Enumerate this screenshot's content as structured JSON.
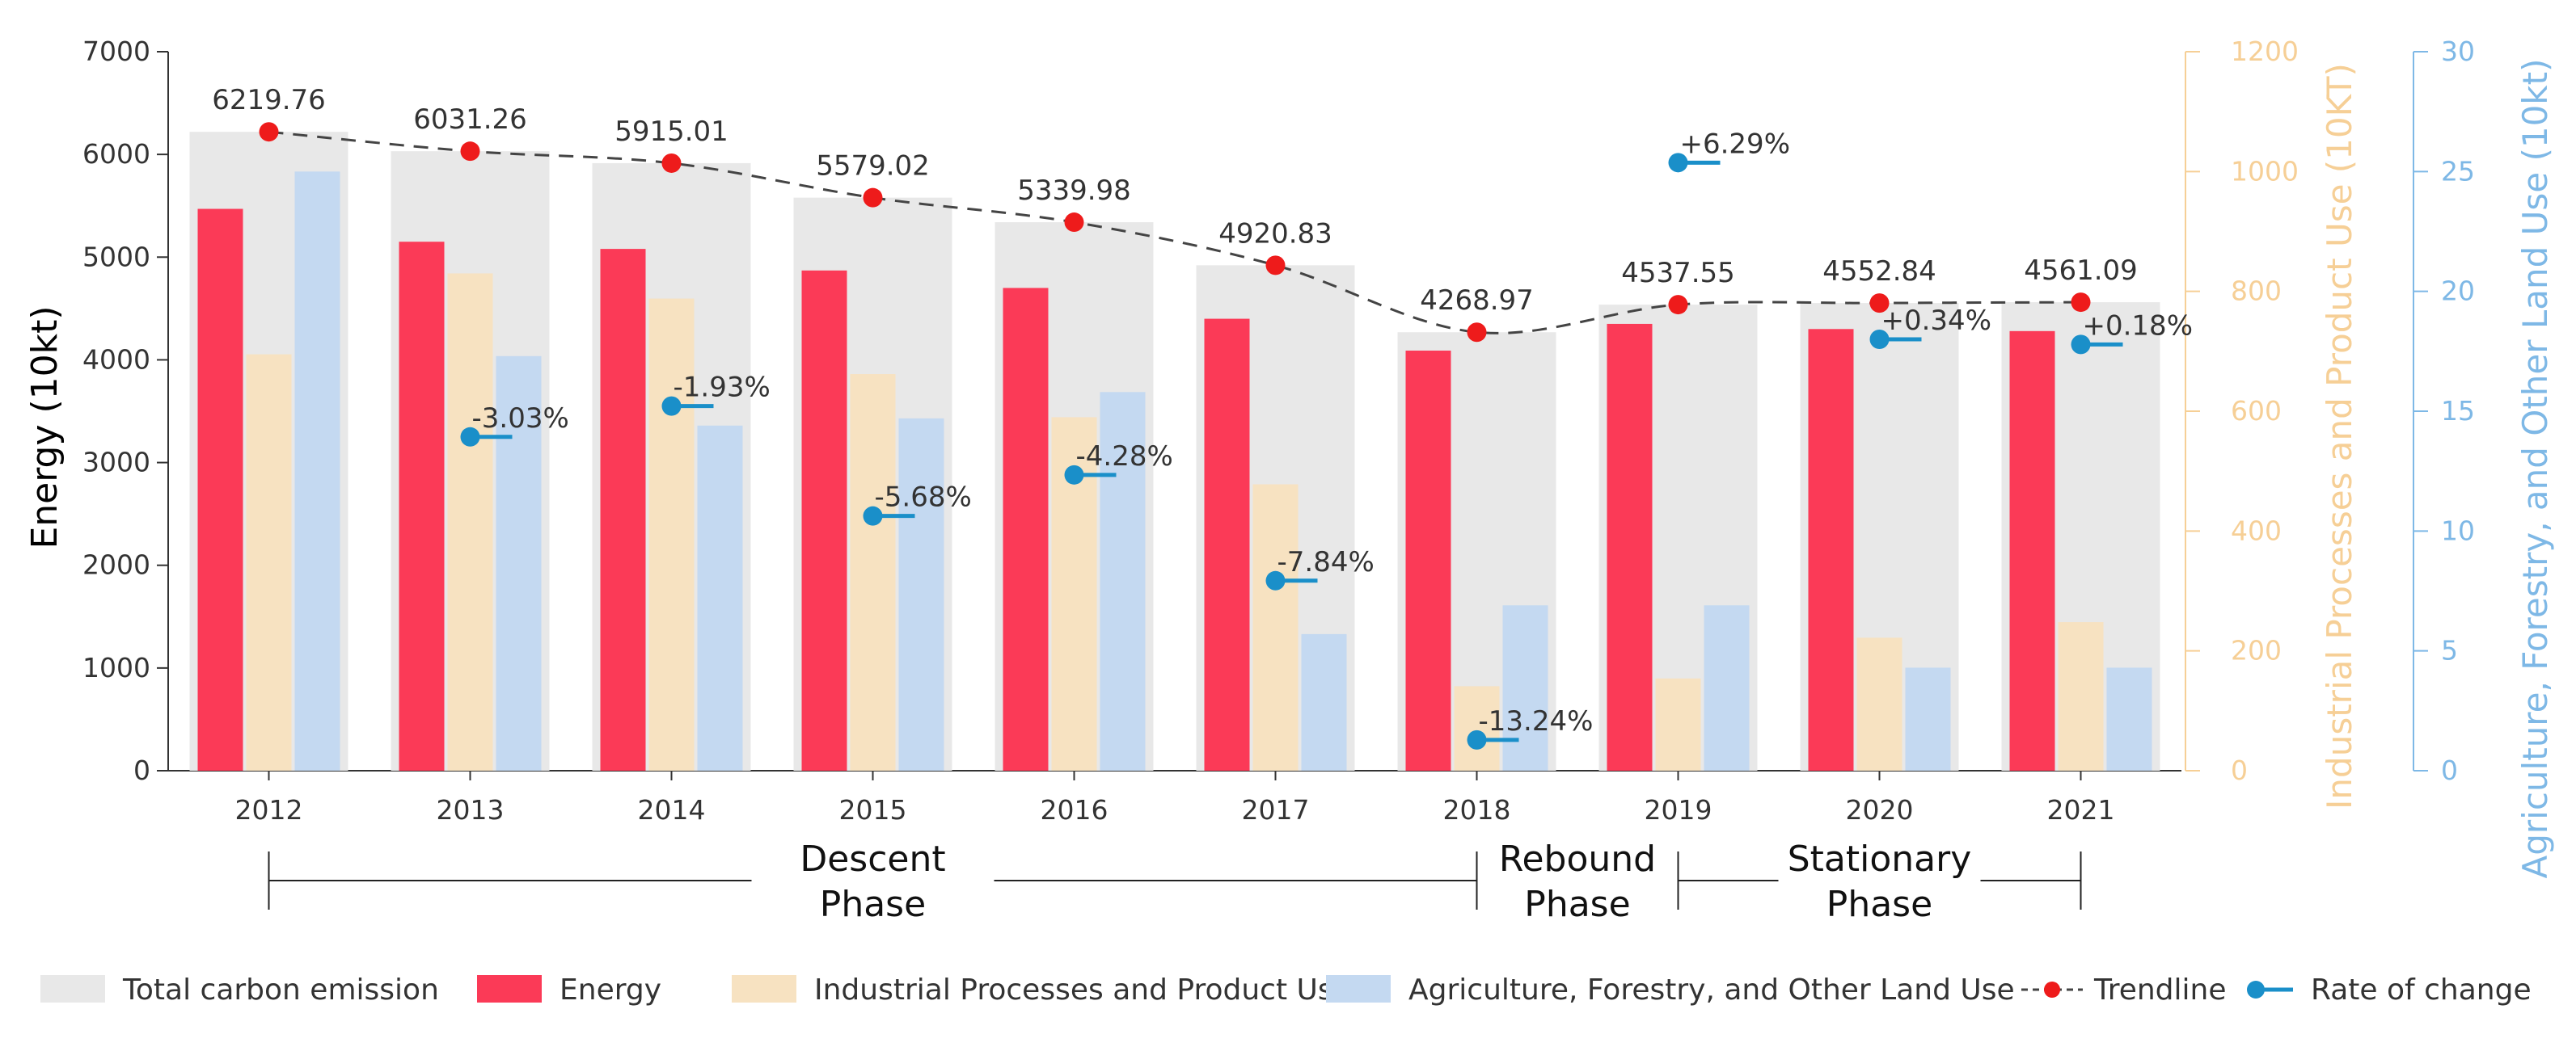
{
  "chart_data": {
    "type": "bar",
    "categories": [
      "2012",
      "2013",
      "2014",
      "2015",
      "2016",
      "2017",
      "2018",
      "2019",
      "2020",
      "2021"
    ],
    "series": [
      {
        "name": "Total carbon emission",
        "axis": "left",
        "color": "#e8e8e8",
        "values": [
          6219.76,
          6031.26,
          5915.01,
          5579.02,
          5339.98,
          4920.83,
          4268.97,
          4537.55,
          4552.84,
          4561.09
        ]
      },
      {
        "name": "Energy",
        "axis": "left",
        "color": "#fb3a57",
        "values": [
          5470,
          5150,
          5080,
          4870,
          4700,
          4400,
          4090,
          4350,
          4300,
          4280
        ]
      },
      {
        "name": "Industrial Processes and Product Use",
        "axis": "right1",
        "color": "#f7e2c1",
        "values": [
          695,
          830,
          788,
          662,
          590,
          478,
          141,
          154,
          222,
          248
        ]
      },
      {
        "name": "Agriculture, Forestry, and Other Land Use",
        "axis": "right2",
        "color": "#c4d9f1",
        "values": [
          25.0,
          17.3,
          14.4,
          14.7,
          15.8,
          5.7,
          6.9,
          6.9,
          4.3,
          4.3
        ]
      }
    ],
    "trendline": {
      "name": "Trendline",
      "color": "#ee1b1b"
    },
    "rate_of_change": {
      "name": "Rate of change",
      "color": "#1a8fc9",
      "labels": [
        "",
        "-3.03%",
        "-1.93%",
        "-5.68%",
        "-4.28%",
        "-7.84%",
        "-13.24%",
        "+6.29%",
        "+0.34%",
        "+0.18%"
      ],
      "positions": [
        null,
        3250,
        3550,
        2480,
        2880,
        1850,
        300,
        5920,
        4200,
        4150
      ]
    },
    "y_left": {
      "label": "Energy (10kt)",
      "ylim": [
        0,
        7000
      ],
      "ticks": [
        "0",
        "1000",
        "2000",
        "3000",
        "4000",
        "5000",
        "6000",
        "7000"
      ]
    },
    "y_right1": {
      "label": "Industrial Processes and Product Use (10KT)",
      "ylim": [
        0,
        1200
      ],
      "ticks": [
        "0",
        "200",
        "400",
        "600",
        "800",
        "1000",
        "1200"
      ]
    },
    "y_right2": {
      "label": "Agriculture, Forestry, and Other Land Use (10kt)",
      "ylim": [
        0,
        30
      ],
      "ticks": [
        "0",
        "5",
        "10",
        "15",
        "20",
        "25",
        "30"
      ]
    },
    "phases": [
      {
        "label_line1": "Descent",
        "label_line2": "Phase",
        "from": "2012",
        "to": "2018"
      },
      {
        "label_line1": "Rebound",
        "label_line2": "Phase",
        "from": "2018",
        "to": "2019"
      },
      {
        "label_line1": "Stationary",
        "label_line2": "Phase",
        "from": "2019",
        "to": "2021"
      }
    ],
    "legend": [
      {
        "label": "Total carbon emission",
        "kind": "box",
        "color": "#e8e8e8"
      },
      {
        "label": "Energy",
        "kind": "box",
        "color": "#fb3a57"
      },
      {
        "label": "Industrial Processes and Product Use",
        "kind": "box",
        "color": "#f7e2c1"
      },
      {
        "label": "Agriculture, Forestry, and Other Land Use",
        "kind": "box",
        "color": "#c4d9f1"
      },
      {
        "label": "Trendline",
        "kind": "trend",
        "color": "#ee1b1b"
      },
      {
        "label": "Rate of change",
        "kind": "rate",
        "color": "#1a8fc9"
      }
    ]
  }
}
